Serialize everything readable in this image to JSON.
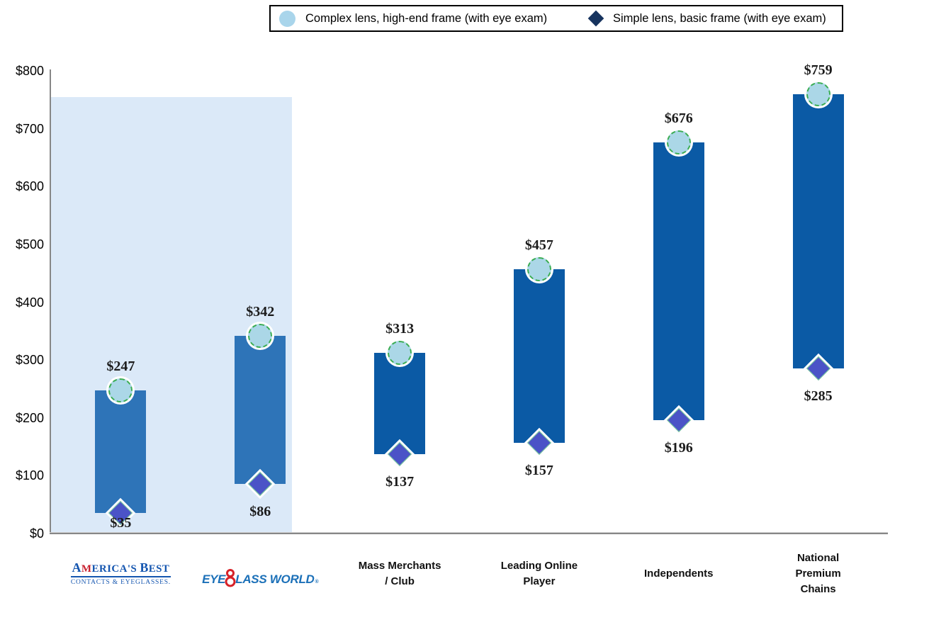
{
  "legend": {
    "items": [
      {
        "label": "Complex lens, high-end frame (with eye exam)",
        "marker": "circle",
        "color": "#A9D5EB"
      },
      {
        "label": "Simple lens, basic frame (with eye exam)",
        "marker": "diamond",
        "color": "#16335E"
      }
    ]
  },
  "chart_data": {
    "type": "range-bar",
    "title": "",
    "xlabel": "",
    "ylabel": "",
    "ylim": [
      0,
      800
    ],
    "grid": false,
    "legend_position": "top-center",
    "yticks": [
      {
        "value": 0,
        "label": "$0"
      },
      {
        "value": 100,
        "label": "$100"
      },
      {
        "value": 200,
        "label": "$200"
      },
      {
        "value": 300,
        "label": "$300"
      },
      {
        "value": 400,
        "label": "$400"
      },
      {
        "value": 500,
        "label": "$500"
      },
      {
        "value": 600,
        "label": "$600"
      },
      {
        "value": 700,
        "label": "$700"
      },
      {
        "value": 800,
        "label": "$800"
      }
    ],
    "series": [
      {
        "name": "Complex lens, high-end frame (with eye exam)",
        "marker": "circle",
        "values": [
          247,
          342,
          313,
          457,
          676,
          759
        ]
      },
      {
        "name": "Simple lens, basic frame (with eye exam)",
        "marker": "diamond",
        "values": [
          35,
          86,
          137,
          157,
          196,
          285
        ]
      }
    ],
    "points": [
      {
        "category": "America's Best",
        "high": 247,
        "low": 35,
        "high_label": "$247",
        "low_label": "$35",
        "emphasized": true
      },
      {
        "category": "Eyeglass World",
        "high": 342,
        "low": 86,
        "high_label": "$342",
        "low_label": "$86",
        "emphasized": true
      },
      {
        "category": "Mass Merchants / Club",
        "high": 313,
        "low": 137,
        "high_label": "$313",
        "low_label": "$137",
        "emphasized": false
      },
      {
        "category": "Leading Online Player",
        "high": 457,
        "low": 157,
        "high_label": "$457",
        "low_label": "$157",
        "emphasized": false
      },
      {
        "category": "Independents",
        "high": 676,
        "low": 196,
        "high_label": "$676",
        "low_label": "$196",
        "emphasized": false
      },
      {
        "category": "National Premium Chains",
        "high": 759,
        "low": 285,
        "high_label": "$759",
        "low_label": "$285",
        "emphasized": false
      }
    ],
    "colors": {
      "bar_emphasized": "#2E74B8",
      "bar_default": "#0B5AA5",
      "circle_fill": "#ABD7E7",
      "circle_border": "#3BAD53",
      "diamond_fill": "#4B53C7",
      "diamond_border": "#77D098",
      "highlight_region": "#DBE9F8",
      "axis": "#878787"
    }
  },
  "categories": [
    {
      "kind": "logo-americas-best",
      "name": "America's Best",
      "line1": "AMERICA'S BEST",
      "line2": "CONTACTS & EYEGLASSES."
    },
    {
      "kind": "logo-eyeglass-world",
      "name": "Eyeglass World",
      "prefix": "EYE",
      "suffix": "LASS WORLD",
      "mark": "®"
    },
    {
      "kind": "text",
      "name": "Mass Merchants / Club",
      "lines": [
        "Mass Merchants",
        "/ Club"
      ]
    },
    {
      "kind": "text",
      "name": "Leading Online Player",
      "lines": [
        "Leading Online",
        "Player"
      ]
    },
    {
      "kind": "text",
      "name": "Independents",
      "lines": [
        "Independents"
      ]
    },
    {
      "kind": "text",
      "name": "National Premium Chains",
      "lines": [
        "National",
        "Premium",
        "Chains"
      ]
    }
  ]
}
